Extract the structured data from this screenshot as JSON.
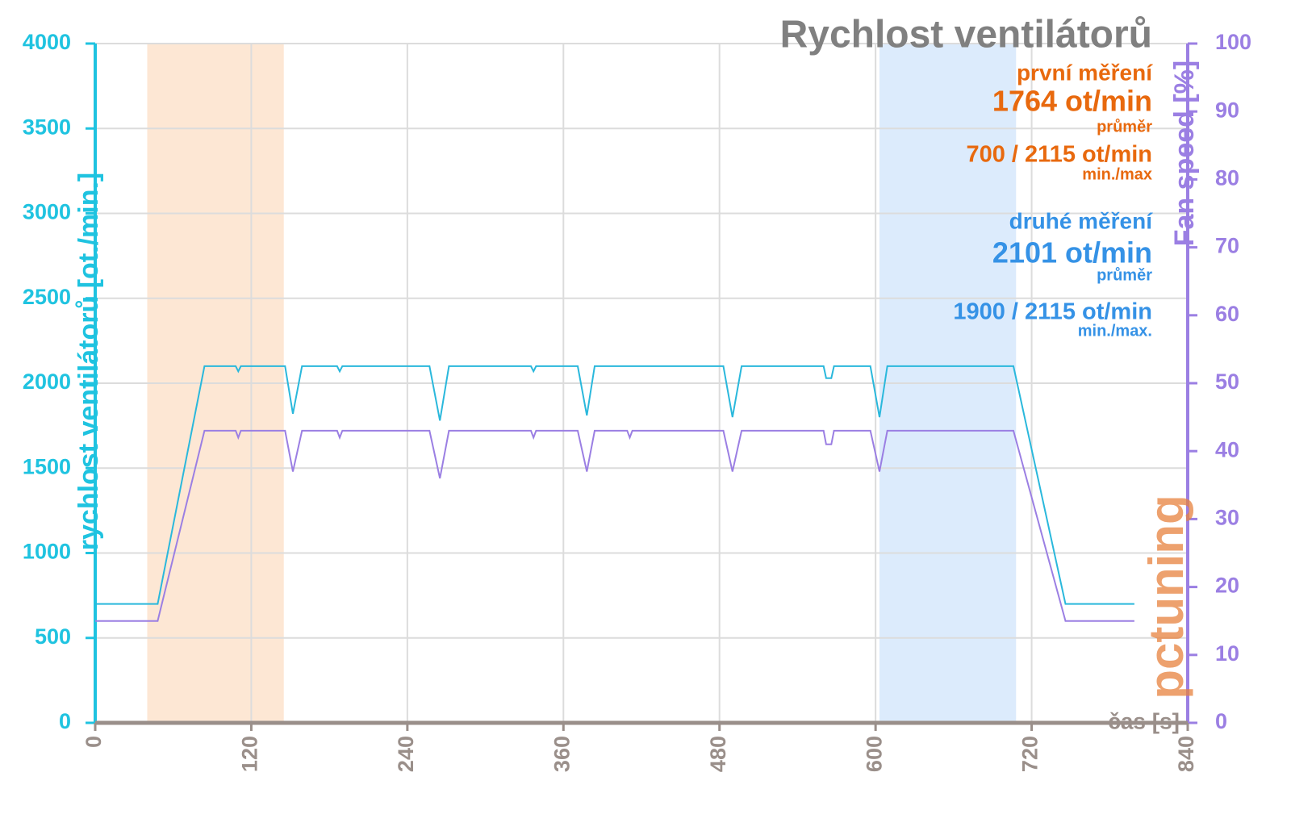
{
  "chart_data": {
    "type": "line",
    "title": "Rychlost ventilátorů",
    "y_label": "rychlost ventilátorů [ot./min.]",
    "y2_label": "Fan speed [%]",
    "x_label": "čas [s]",
    "logo": "pctuning",
    "xlim": [
      0,
      840
    ],
    "xticks": [
      0,
      120,
      240,
      360,
      480,
      600,
      720,
      840
    ],
    "ylim": [
      0,
      4000
    ],
    "yticks": [
      0,
      500,
      1000,
      1500,
      2000,
      2500,
      3000,
      3500,
      4000
    ],
    "y2lim": [
      0,
      100
    ],
    "y2ticks": [
      0,
      10,
      20,
      30,
      40,
      50,
      60,
      70,
      80,
      90,
      100
    ],
    "grid": true,
    "y_color": "#1fc3e0",
    "y2_color": "#9b7fe3",
    "x_color": "#9a8f8a",
    "regions": [
      {
        "x": [
          40,
          145
        ],
        "color": "#fde3cc"
      },
      {
        "x": [
          603,
          708
        ],
        "color": "#d6e8fb"
      }
    ],
    "x": [
      0,
      48,
      84,
      108,
      110,
      112,
      146,
      152,
      159,
      186,
      188,
      190,
      257,
      265,
      272,
      335,
      337,
      339,
      371,
      378,
      384,
      409,
      411,
      413,
      483,
      490,
      497,
      560,
      562,
      566,
      568,
      596,
      603,
      609,
      706,
      746,
      799
    ],
    "series": [
      {
        "color": "#2ab8dc",
        "values": [
          700,
          700,
          2100,
          2100,
          2070,
          2100,
          2100,
          1820,
          2100,
          2100,
          2070,
          2100,
          2100,
          1780,
          2100,
          2100,
          2070,
          2100,
          2100,
          1810,
          2100,
          2100,
          2100,
          2100,
          2100,
          1800,
          2100,
          2100,
          2030,
          2030,
          2100,
          2100,
          1800,
          2100,
          2100,
          700,
          700
        ]
      },
      {
        "color": "#9b7fe3",
        "axis": "y2",
        "values": [
          15,
          15,
          43,
          43,
          42,
          43,
          43,
          37,
          43,
          43,
          42,
          43,
          43,
          36,
          43,
          43,
          42,
          43,
          43,
          37,
          43,
          43,
          42,
          43,
          43,
          37,
          43,
          43,
          41,
          41,
          43,
          43,
          37,
          43,
          43,
          15,
          15
        ]
      }
    ],
    "annotations": [
      {
        "text": "první měření",
        "color": "#e8690e"
      },
      {
        "text": "1764 ot/min",
        "color": "#e8690e"
      },
      {
        "text": "průměr",
        "color": "#e8690e"
      },
      {
        "text": "700 / 2115 ot/min",
        "color": "#e8690e"
      },
      {
        "text": "min./max",
        "color": "#e8690e"
      },
      {
        "text": "druhé měření",
        "color": "#3592e6"
      },
      {
        "text": "2101 ot/min",
        "color": "#3592e6"
      },
      {
        "text": "průměr",
        "color": "#3592e6"
      },
      {
        "text": "1900 / 2115 ot/min",
        "color": "#3592e6"
      },
      {
        "text": "min./max.",
        "color": "#3592e6"
      }
    ]
  }
}
